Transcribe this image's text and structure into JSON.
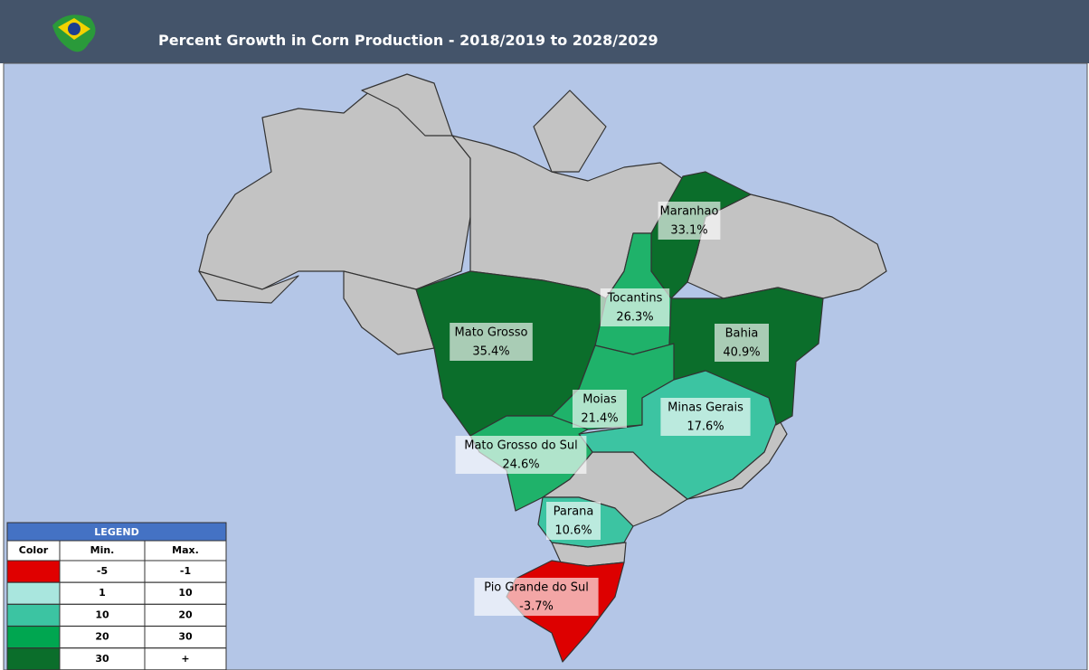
{
  "header": {
    "title": "Percent Growth in Corn Production - 2018/2019 to 2028/2029"
  },
  "regions": [
    {
      "name": "Maranhao",
      "value": "33.1%",
      "color": "#0b6e2b"
    },
    {
      "name": "Tocantins",
      "value": "26.3%",
      "color": "#1fb26a"
    },
    {
      "name": "Mato Grosso",
      "value": "35.4%",
      "color": "#0b6e2b"
    },
    {
      "name": "Bahia",
      "value": "40.9%",
      "color": "#0b6e2b"
    },
    {
      "name": "Moias",
      "value": "21.4%",
      "color": "#1fb26a"
    },
    {
      "name": "Minas Gerais",
      "value": "17.6%",
      "color": "#3cc4a2"
    },
    {
      "name": "Mato Grosso do Sul",
      "value": "24.6%",
      "color": "#1fb26a"
    },
    {
      "name": "Parana",
      "value": "10.6%",
      "color": "#3cc4a2"
    },
    {
      "name": "Pio Grande do Sul",
      "value": "-3.7%",
      "color": "#dd0000"
    }
  ],
  "legend": {
    "title": "LEGEND",
    "columns": [
      "Color",
      "Min.",
      "Max."
    ],
    "rows": [
      {
        "color": "#e00000",
        "min": "-5",
        "max": "-1"
      },
      {
        "color": "#a9e6de",
        "min": "1",
        "max": "10"
      },
      {
        "color": "#3cc4a2",
        "min": "10",
        "max": "20"
      },
      {
        "color": "#00a650",
        "min": "20",
        "max": "30"
      },
      {
        "color": "#0b6e2b",
        "min": "30",
        "max": "+"
      }
    ]
  }
}
